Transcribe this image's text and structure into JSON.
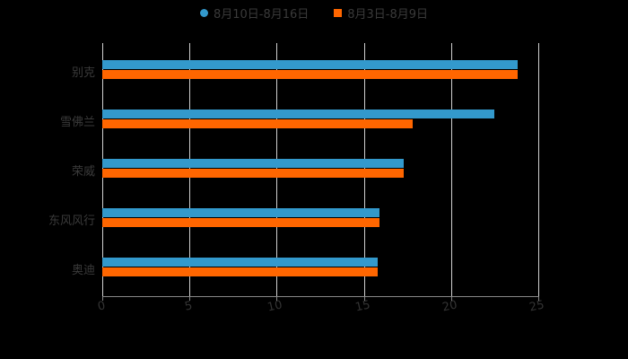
{
  "chart_data": {
    "type": "bar",
    "orientation": "horizontal",
    "title": "",
    "xlabel": "",
    "ylabel": "",
    "categories": [
      "别克",
      "雪佛兰",
      "荣威",
      "东风风行",
      "奥迪"
    ],
    "series": [
      {
        "name": "8月10日-8月16日",
        "color": "#3399CC",
        "values": [
          23.8,
          22.5,
          17.3,
          15.9,
          15.8
        ]
      },
      {
        "name": "8月3日-8月9日",
        "color": "#FF6600",
        "values": [
          23.8,
          17.8,
          17.3,
          15.9,
          15.8
        ]
      }
    ],
    "xlim": [
      0,
      25
    ],
    "xticks": [
      "0",
      "5",
      "10",
      "15",
      "20",
      "25"
    ],
    "grid": true,
    "legend_position": "top"
  },
  "legend": {
    "series1": "8月10日-8月16日",
    "series2": "8月3日-8月9日"
  },
  "colors": {
    "series1": "#3399CC",
    "series2": "#FF6600",
    "background": "#000000",
    "grid": "#D0D0D0"
  }
}
